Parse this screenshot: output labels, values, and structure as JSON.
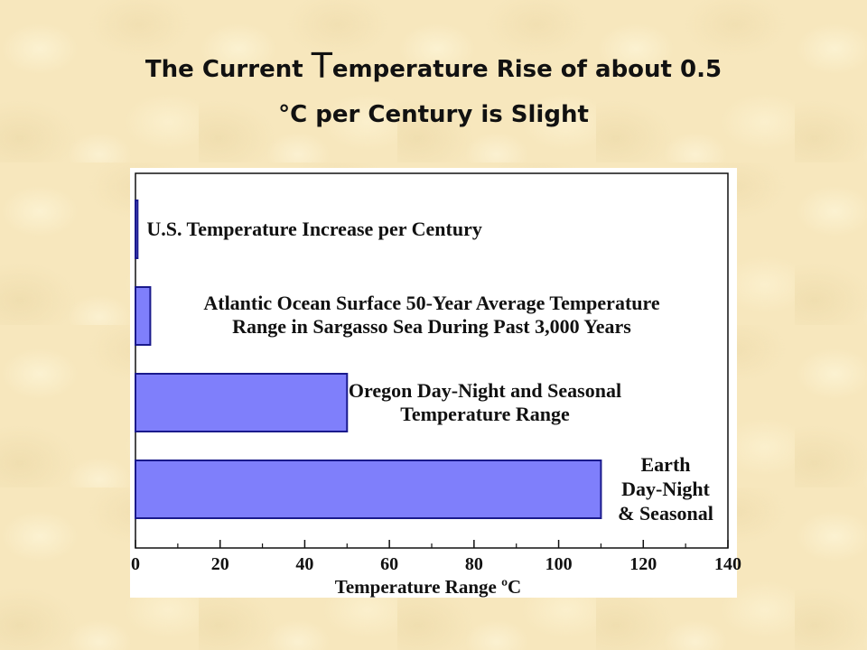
{
  "title": {
    "line1_prefix": "The Current ",
    "line1_T": "T",
    "line1_suffix": "emperature Rise of about 0.5",
    "line2": "°C per Century is Slight"
  },
  "colors": {
    "bar_fill": "#7f7ffb",
    "bar_stroke": "#1a1a8c",
    "page_background": "#f7e7bd"
  },
  "chart_data": {
    "type": "bar",
    "orientation": "horizontal",
    "xlabel": "Temperature Range ºC",
    "xlim": [
      0,
      140
    ],
    "xticks": [
      "0",
      "20",
      "40",
      "60",
      "80",
      "100",
      "120",
      "140"
    ],
    "grid": false,
    "bars": [
      {
        "value": 0.5,
        "label_lines": [
          "U.S. Temperature Increase per Century"
        ]
      },
      {
        "value": 3.5,
        "label_lines": [
          "Atlantic Ocean Surface 50-Year Average Temperature",
          "Range in Sargasso Sea During Past 3,000 Years"
        ]
      },
      {
        "value": 50,
        "label_lines": [
          "Oregon Day-Night and Seasonal",
          "Temperature Range"
        ]
      },
      {
        "value": 110,
        "label_lines": [
          "Earth",
          "Day-Night",
          "& Seasonal"
        ]
      }
    ]
  }
}
